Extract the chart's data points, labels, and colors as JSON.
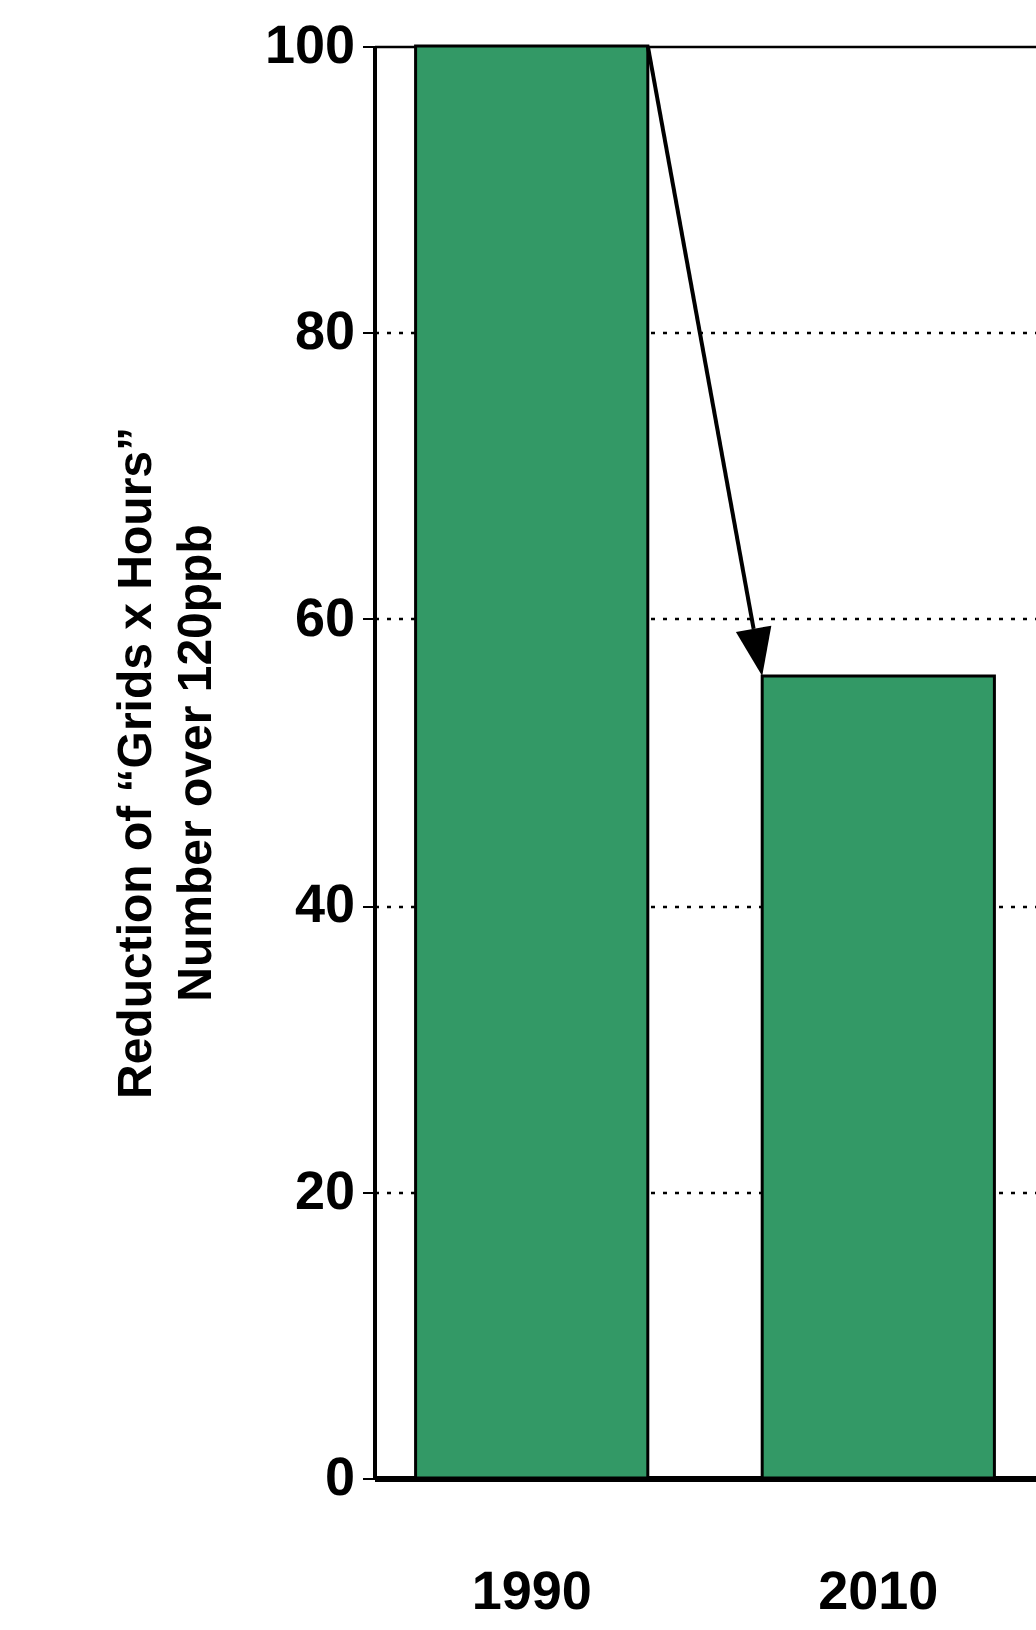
{
  "chart_data": {
    "type": "bar",
    "ylabel": "Reduction of “Grids x Hours”\nNumber over 120ppb",
    "categories": [
      "1990",
      "2010"
    ],
    "values": [
      100,
      56
    ],
    "color": "#339966",
    "ylim": [
      0,
      100
    ],
    "yticks": [
      0,
      20,
      40,
      60,
      80,
      100
    ],
    "grid": "y"
  }
}
